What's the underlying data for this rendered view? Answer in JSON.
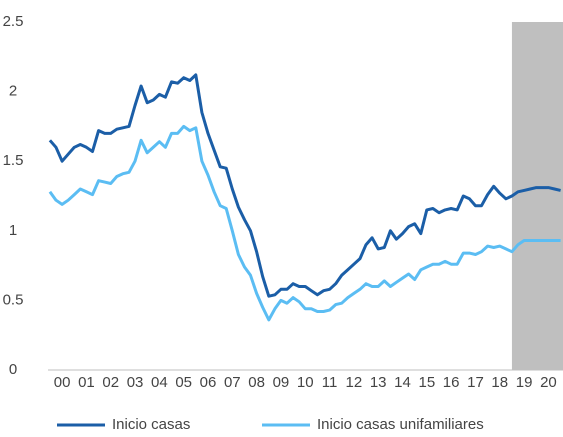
{
  "chart_data": {
    "type": "line",
    "x": [
      2000,
      2000.25,
      2000.5,
      2000.75,
      2001,
      2001.25,
      2001.5,
      2001.75,
      2002,
      2002.25,
      2002.5,
      2002.75,
      2003,
      2003.25,
      2003.5,
      2003.75,
      2004,
      2004.25,
      2004.5,
      2004.75,
      2005,
      2005.25,
      2005.5,
      2005.75,
      2006,
      2006.25,
      2006.5,
      2006.75,
      2007,
      2007.25,
      2007.5,
      2007.75,
      2008,
      2008.25,
      2008.5,
      2008.75,
      2009,
      2009.25,
      2009.5,
      2009.75,
      2010,
      2010.25,
      2010.5,
      2010.75,
      2011,
      2011.25,
      2011.5,
      2011.75,
      2012,
      2012.25,
      2012.5,
      2012.75,
      2013,
      2013.25,
      2013.5,
      2013.75,
      2014,
      2014.25,
      2014.5,
      2014.75,
      2015,
      2015.25,
      2015.5,
      2015.75,
      2016,
      2016.25,
      2016.5,
      2016.75,
      2017,
      2017.25,
      2017.5,
      2017.75,
      2018,
      2018.25,
      2018.5,
      2018.75,
      2019,
      2019.25,
      2019.5,
      2019.75,
      2020,
      2020.25,
      2020.5,
      2020.75,
      2021
    ],
    "series": [
      {
        "name": "Inicio casas",
        "color": "#1b5ea7",
        "values": [
          1.65,
          1.6,
          1.5,
          1.55,
          1.6,
          1.62,
          1.6,
          1.57,
          1.72,
          1.7,
          1.7,
          1.73,
          1.74,
          1.75,
          1.9,
          2.04,
          1.92,
          1.94,
          1.98,
          1.96,
          2.07,
          2.06,
          2.1,
          2.08,
          2.12,
          1.85,
          1.7,
          1.58,
          1.46,
          1.45,
          1.3,
          1.17,
          1.08,
          1.0,
          0.85,
          0.67,
          0.53,
          0.54,
          0.58,
          0.58,
          0.62,
          0.6,
          0.6,
          0.57,
          0.54,
          0.57,
          0.58,
          0.62,
          0.68,
          0.72,
          0.76,
          0.8,
          0.9,
          0.95,
          0.87,
          0.88,
          1.0,
          0.94,
          0.98,
          1.03,
          1.05,
          0.98,
          1.15,
          1.16,
          1.13,
          1.15,
          1.16,
          1.15,
          1.25,
          1.23,
          1.18,
          1.18,
          1.26,
          1.32,
          1.27,
          1.23,
          1.25,
          1.28,
          1.29,
          1.3,
          1.31,
          1.31,
          1.31,
          1.3,
          1.29
        ]
      },
      {
        "name": "Inicio casas unifamiliares",
        "color": "#5bbdf3",
        "values": [
          1.28,
          1.22,
          1.19,
          1.22,
          1.26,
          1.3,
          1.28,
          1.26,
          1.36,
          1.35,
          1.34,
          1.39,
          1.41,
          1.42,
          1.5,
          1.65,
          1.56,
          1.6,
          1.64,
          1.6,
          1.7,
          1.7,
          1.75,
          1.72,
          1.74,
          1.5,
          1.4,
          1.28,
          1.18,
          1.16,
          1.0,
          0.83,
          0.74,
          0.68,
          0.55,
          0.45,
          0.36,
          0.44,
          0.5,
          0.48,
          0.52,
          0.49,
          0.44,
          0.44,
          0.42,
          0.42,
          0.43,
          0.47,
          0.48,
          0.52,
          0.55,
          0.58,
          0.62,
          0.6,
          0.6,
          0.64,
          0.6,
          0.63,
          0.66,
          0.69,
          0.65,
          0.72,
          0.74,
          0.76,
          0.76,
          0.78,
          0.76,
          0.76,
          0.84,
          0.84,
          0.83,
          0.85,
          0.89,
          0.88,
          0.89,
          0.87,
          0.85,
          0.9,
          0.93,
          0.93,
          0.93,
          0.93,
          0.93,
          0.93,
          0.93
        ]
      }
    ],
    "xlim": [
      1999.92,
      2021.1
    ],
    "xticks": [
      {
        "value": 2000.5,
        "label": "00"
      },
      {
        "value": 2001.5,
        "label": "01"
      },
      {
        "value": 2002.5,
        "label": "02"
      },
      {
        "value": 2003.5,
        "label": "03"
      },
      {
        "value": 2004.5,
        "label": "04"
      },
      {
        "value": 2005.5,
        "label": "05"
      },
      {
        "value": 2006.5,
        "label": "06"
      },
      {
        "value": 2007.5,
        "label": "07"
      },
      {
        "value": 2008.5,
        "label": "08"
      },
      {
        "value": 2009.5,
        "label": "09"
      },
      {
        "value": 2010.5,
        "label": "10"
      },
      {
        "value": 2011.5,
        "label": "11"
      },
      {
        "value": 2012.5,
        "label": "12"
      },
      {
        "value": 2013.5,
        "label": "13"
      },
      {
        "value": 2014.5,
        "label": "14"
      },
      {
        "value": 2015.5,
        "label": "15"
      },
      {
        "value": 2016.5,
        "label": "16"
      },
      {
        "value": 2017.5,
        "label": "17"
      },
      {
        "value": 2018.5,
        "label": "18"
      },
      {
        "value": 2019.5,
        "label": "19"
      },
      {
        "value": 2020.5,
        "label": "20"
      }
    ],
    "ylim": [
      0,
      2.5
    ],
    "yticks": [
      0,
      0.5,
      1,
      1.5,
      2,
      2.5
    ],
    "shaded_span": [
      2019,
      2021.1
    ],
    "shade_color": "#bfbfbf",
    "legend": "bottom"
  }
}
